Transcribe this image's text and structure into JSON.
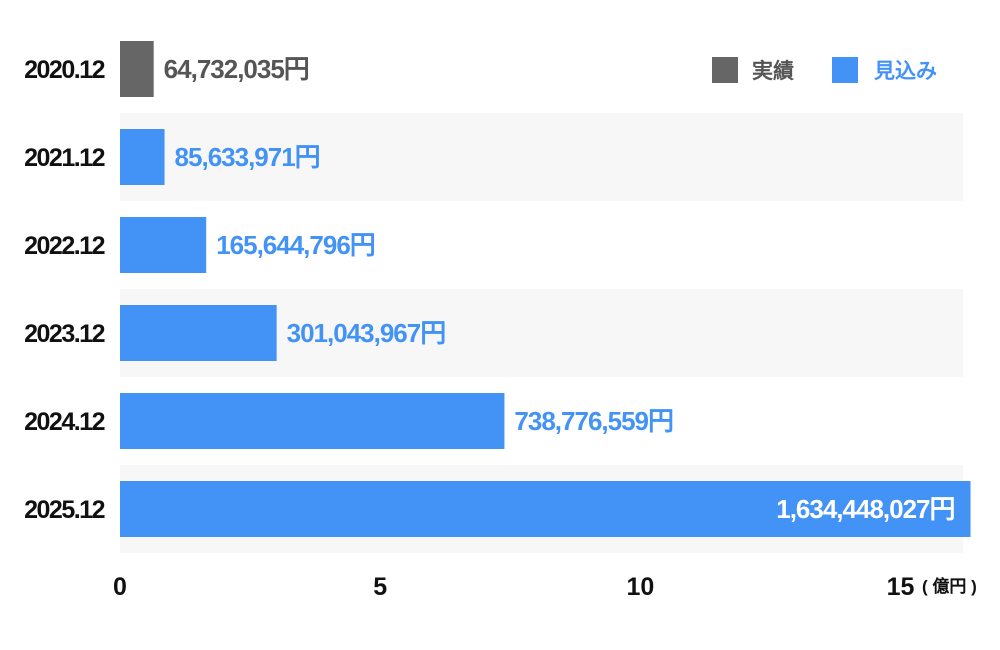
{
  "chart_data": {
    "type": "bar",
    "orientation": "horizontal",
    "categories": [
      "2020.12",
      "2021.12",
      "2022.12",
      "2023.12",
      "2024.12",
      "2025.12"
    ],
    "values": [
      64732035,
      85633971,
      165644796,
      301043967,
      738776559,
      1634448027
    ],
    "value_labels": [
      "64,732,035",
      "85,633,971",
      "165,644,796",
      "301,043,967",
      "738,776,559",
      "1,634,448,027"
    ],
    "value_unit": "円",
    "point_series": [
      "実績",
      "見込み",
      "見込み",
      "見込み",
      "見込み",
      "見込み"
    ],
    "series": [
      {
        "name": "実績",
        "color": "#666666"
      },
      {
        "name": "見込み",
        "color": "#4293f5"
      }
    ],
    "x_ticks": [
      "0",
      "5",
      "10",
      "15"
    ],
    "x_tick_values": [
      0,
      500000000,
      1000000000,
      1500000000
    ],
    "xlim": [
      0,
      1620000000
    ],
    "x_unit_label": "( 億円 )",
    "legend_position": "top-right",
    "grid": false,
    "row_band_colors": [
      "#ffffff",
      "#f7f7f7"
    ]
  }
}
